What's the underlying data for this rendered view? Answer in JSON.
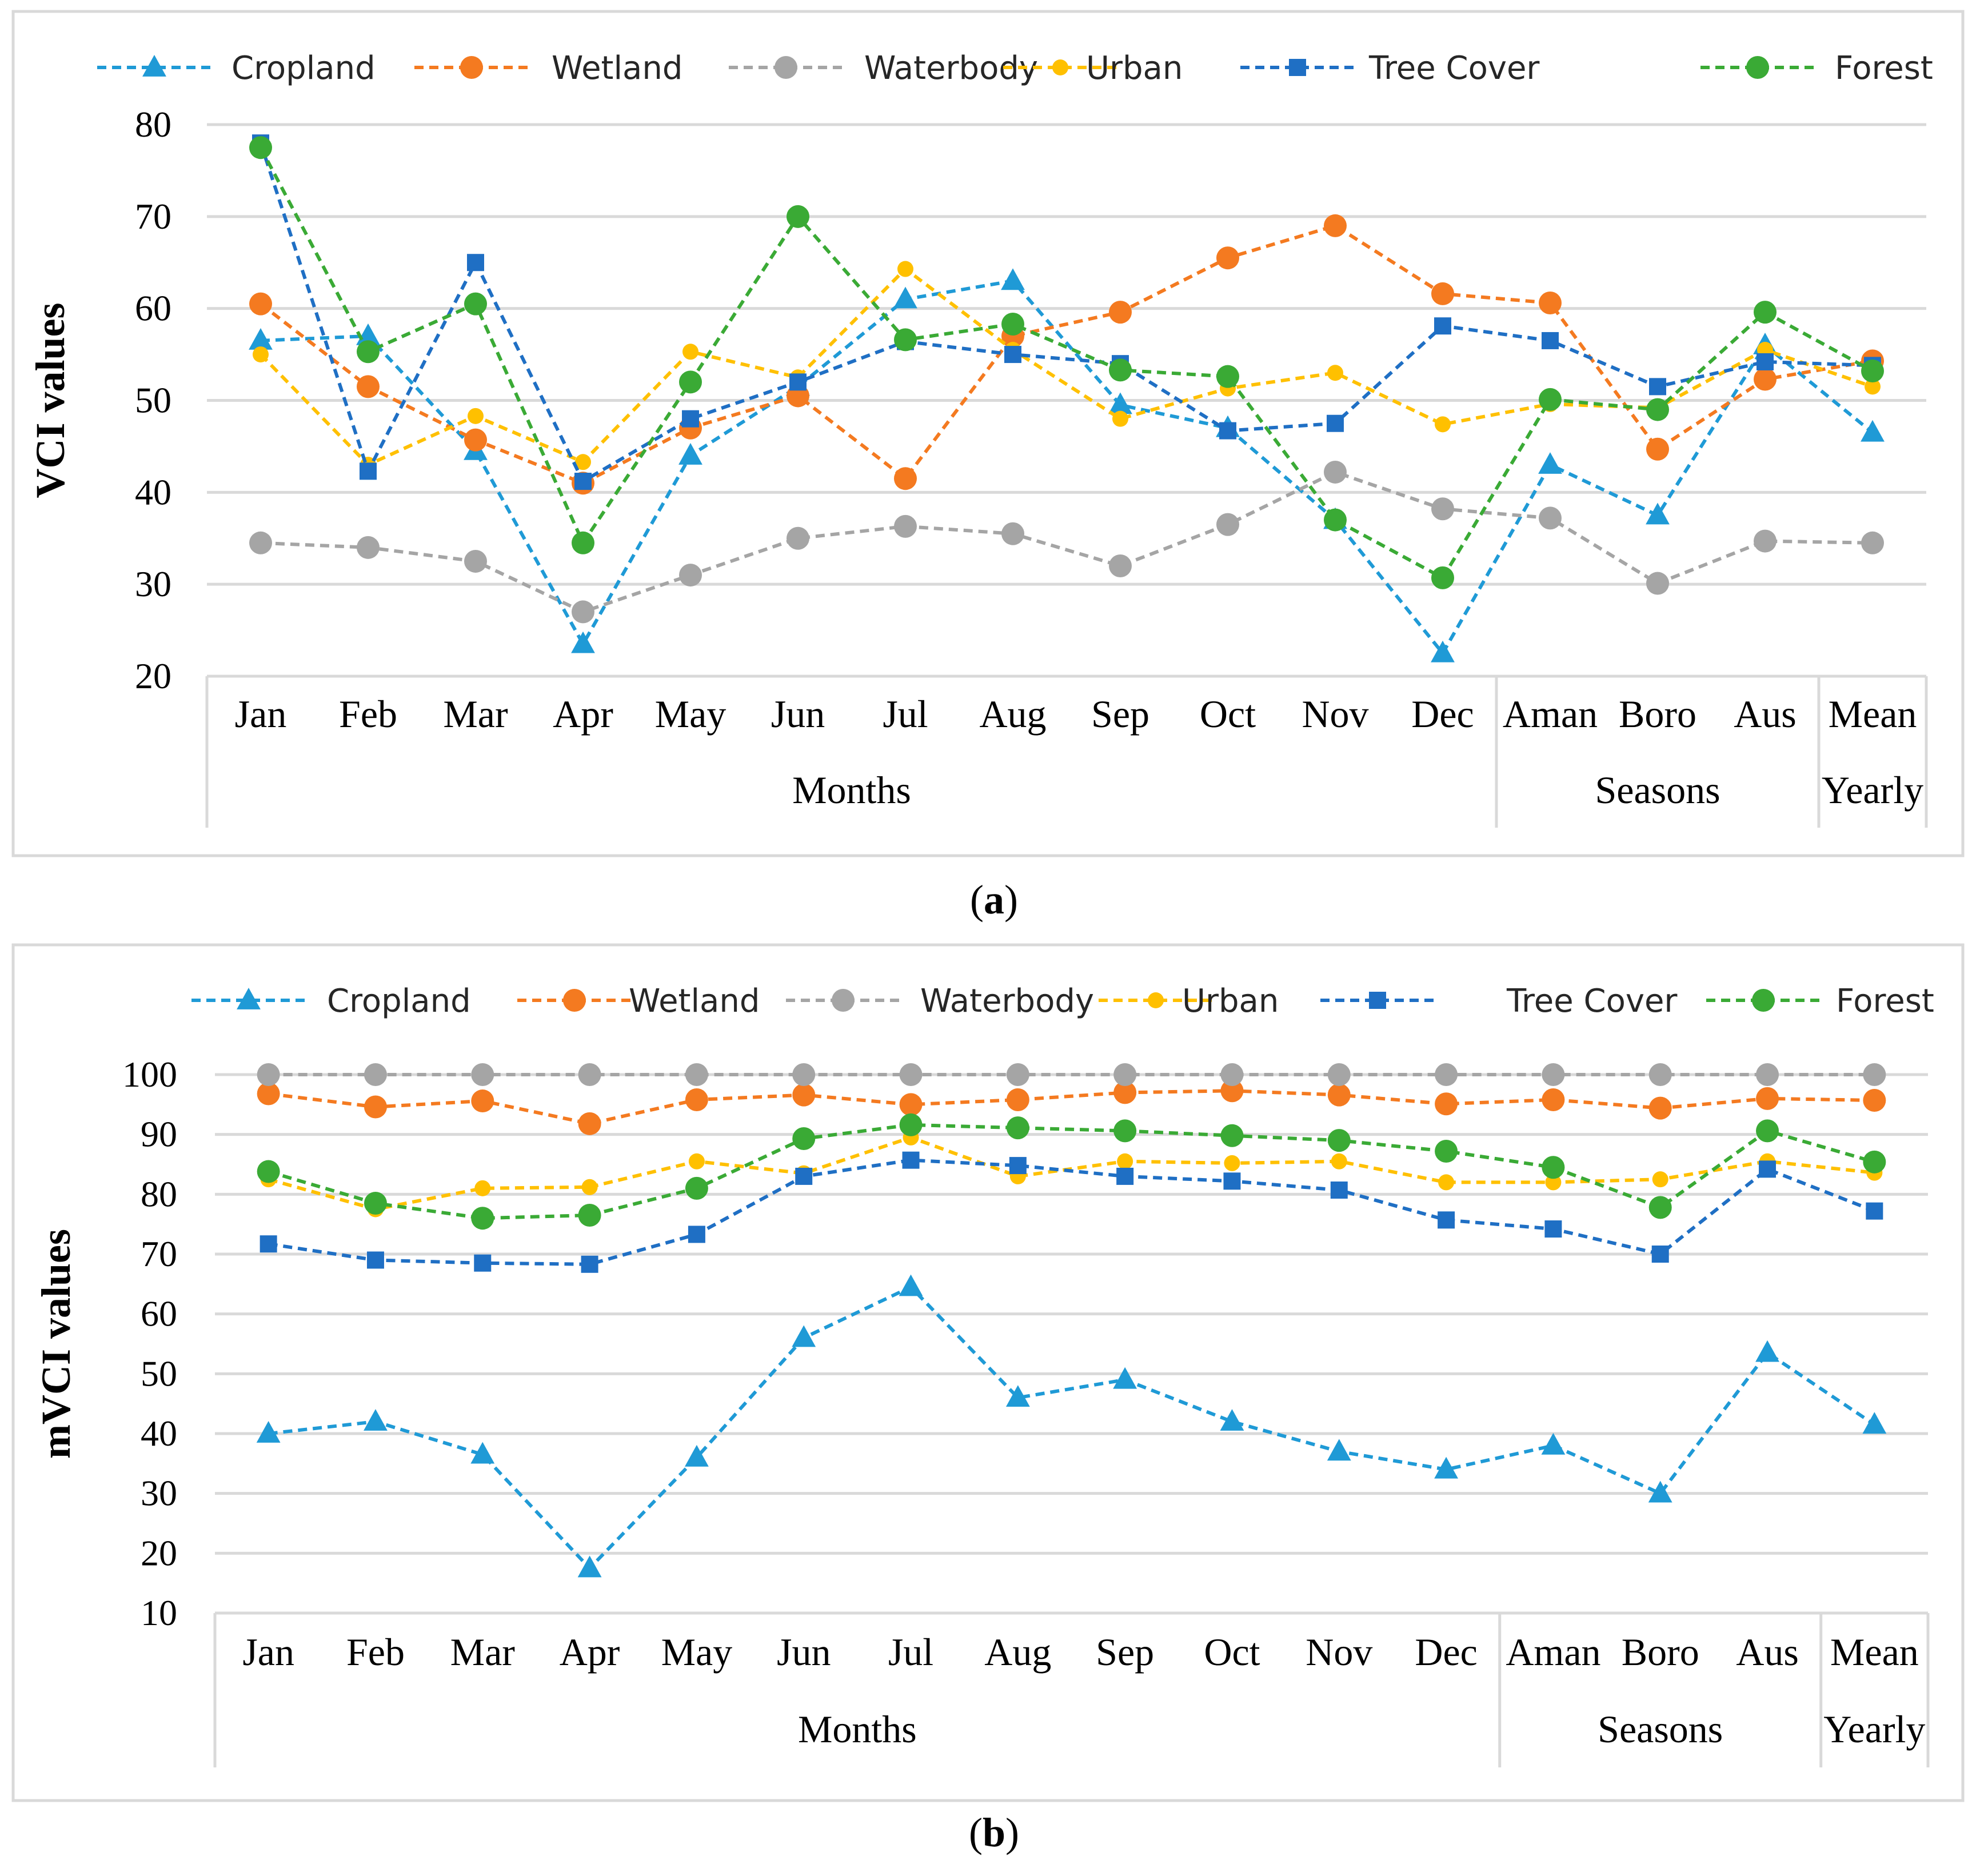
{
  "colors": {
    "cropland": "#1f9ad6",
    "wetland": "#f47a20",
    "waterbody": "#a5a5a5",
    "urban": "#ffc000",
    "tree_cover": "#1f6fc4",
    "forest": "#3aaa35",
    "grid": "#d9d9d9",
    "frame": "#d9d9d9"
  },
  "chart_data": [
    {
      "type": "line",
      "panel": "a",
      "caption_letter": "a",
      "caption_open": "(",
      "caption_close": ")",
      "title": "",
      "xlabel": "",
      "ylabel": "VCI values",
      "ylim": [
        20,
        80
      ],
      "yticks": [
        20,
        30,
        40,
        50,
        60,
        70,
        80
      ],
      "grid": true,
      "legend_position": "top",
      "categories": [
        "Jan",
        "Feb",
        "Mar",
        "Apr",
        "May",
        "Jun",
        "Jul",
        "Aug",
        "Sep",
        "Oct",
        "Nov",
        "Dec",
        "Aman",
        "Boro",
        "Aus",
        "Mean"
      ],
      "groups": [
        {
          "label": "Months",
          "start": 0,
          "end": 11
        },
        {
          "label": "Seasons",
          "start": 12,
          "end": 14
        },
        {
          "label": "Yearly",
          "start": 15,
          "end": 15
        }
      ],
      "series": [
        {
          "name": "Cropland",
          "key": "cropland",
          "marker": "triangle",
          "values": [
            56.5,
            57,
            44.5,
            23.5,
            44,
            51.5,
            61,
            63,
            49.5,
            47,
            37,
            22.5,
            43,
            37.5,
            56,
            46.5
          ]
        },
        {
          "name": "Wetland",
          "key": "wetland",
          "marker": "circle",
          "values": [
            60.5,
            51.5,
            45.7,
            41,
            47,
            50.5,
            41.5,
            57,
            59.6,
            65.5,
            69,
            61.6,
            60.6,
            44.7,
            52.3,
            54.3
          ]
        },
        {
          "name": "Waterbody",
          "key": "waterbody",
          "marker": "circle",
          "values": [
            34.5,
            34,
            32.5,
            27,
            31,
            35,
            36.3,
            35.5,
            32,
            36.5,
            42.2,
            38.2,
            37.2,
            30.1,
            34.7,
            34.5
          ]
        },
        {
          "name": "Urban",
          "key": "urban",
          "marker": "smallcircle",
          "values": [
            55,
            43,
            48.3,
            43.3,
            55.3,
            52.5,
            64.3,
            55.5,
            48,
            51.3,
            53,
            47.4,
            49.6,
            49.2,
            55.5,
            51.5
          ]
        },
        {
          "name": "Tree Cover",
          "key": "tree_cover",
          "marker": "square",
          "values": [
            78,
            42.3,
            65,
            41.2,
            48,
            52,
            56.4,
            55,
            54,
            46.7,
            47.5,
            58.1,
            56.5,
            51.5,
            54.2,
            53.8
          ]
        },
        {
          "name": "Forest",
          "key": "forest",
          "marker": "circle",
          "values": [
            77.5,
            55.3,
            60.5,
            34.5,
            52,
            70,
            56.6,
            58.3,
            53.3,
            52.6,
            37,
            30.7,
            50.1,
            49,
            59.6,
            53.2
          ]
        }
      ]
    },
    {
      "type": "line",
      "panel": "b",
      "caption_letter": "b",
      "caption_open": "(",
      "caption_close": ")",
      "title": "",
      "xlabel": "",
      "ylabel": "mVCI values",
      "ylim": [
        10,
        100
      ],
      "yticks": [
        10,
        20,
        30,
        40,
        50,
        60,
        70,
        80,
        90,
        100
      ],
      "grid": true,
      "legend_position": "top",
      "categories": [
        "Jan",
        "Feb",
        "Mar",
        "Apr",
        "May",
        "Jun",
        "Jul",
        "Aug",
        "Sep",
        "Oct",
        "Nov",
        "Dec",
        "Aman",
        "Boro",
        "Aus",
        "Mean"
      ],
      "groups": [
        {
          "label": "Months",
          "start": 0,
          "end": 11
        },
        {
          "label": "Seasons",
          "start": 12,
          "end": 14
        },
        {
          "label": "Yearly",
          "start": 15,
          "end": 15
        }
      ],
      "series": [
        {
          "name": "Cropland",
          "key": "cropland",
          "marker": "triangle",
          "values": [
            40,
            42,
            36.5,
            17.5,
            36,
            56,
            64.5,
            46,
            49,
            42,
            37,
            34,
            38,
            30,
            53.5,
            41.5
          ]
        },
        {
          "name": "Wetland",
          "key": "wetland",
          "marker": "circle",
          "values": [
            96.8,
            94.6,
            95.6,
            91.8,
            95.8,
            96.6,
            95,
            95.8,
            97,
            97.3,
            96.6,
            95.1,
            95.8,
            94.4,
            96,
            95.7
          ]
        },
        {
          "name": "Waterbody",
          "key": "waterbody",
          "marker": "circle",
          "values": [
            100,
            100,
            100,
            100,
            100,
            100,
            100,
            100,
            100,
            100,
            100,
            100,
            100,
            100,
            100,
            100
          ]
        },
        {
          "name": "Urban",
          "key": "urban",
          "marker": "smallcircle",
          "values": [
            82.5,
            77.5,
            81,
            81.2,
            85.5,
            83.5,
            89.5,
            83,
            85.5,
            85.2,
            85.5,
            82,
            82,
            82.5,
            85.5,
            83.6
          ]
        },
        {
          "name": "Tree Cover",
          "key": "tree_cover",
          "marker": "square",
          "values": [
            71.7,
            69,
            68.5,
            68.3,
            73.3,
            83,
            85.7,
            84.8,
            83,
            82.2,
            80.7,
            75.7,
            74.2,
            70,
            84.2,
            77.2
          ]
        },
        {
          "name": "Forest",
          "key": "forest",
          "marker": "circle",
          "values": [
            83.8,
            78.5,
            76,
            76.5,
            81,
            89.3,
            91.6,
            91.1,
            90.6,
            89.8,
            89,
            87.2,
            84.5,
            77.8,
            90.6,
            85.4
          ]
        }
      ]
    }
  ]
}
